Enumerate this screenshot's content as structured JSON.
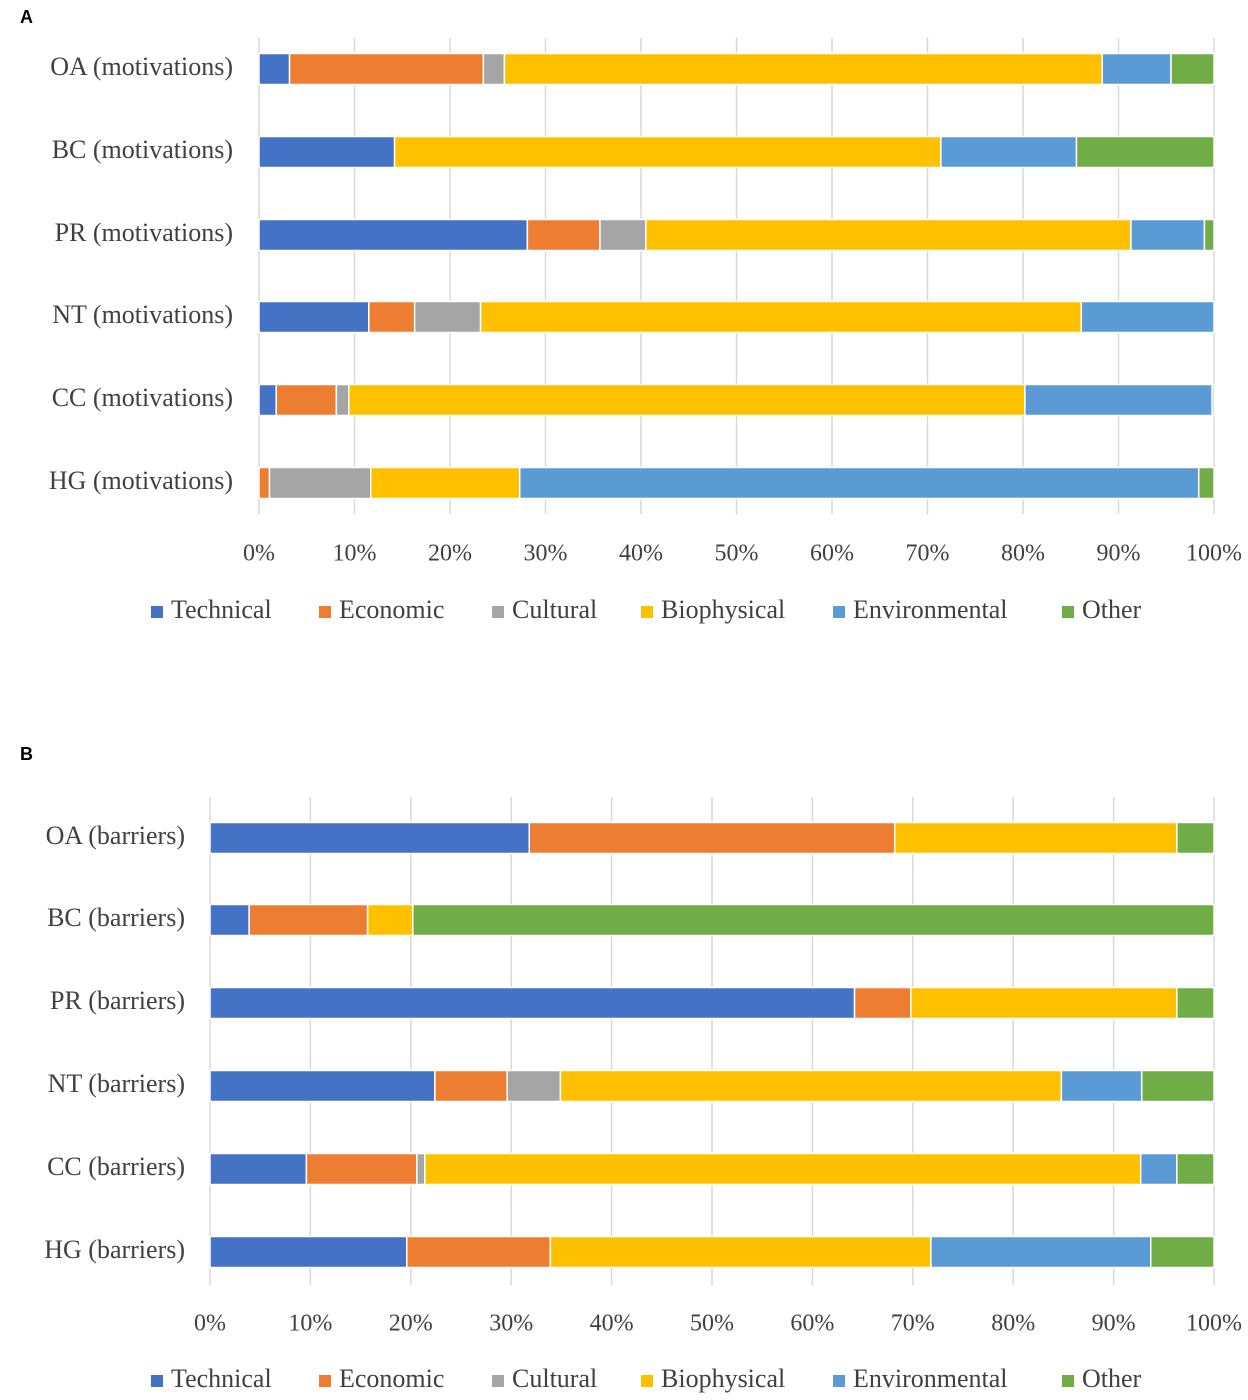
{
  "chart_data": [
    {
      "type": "bar",
      "orientation": "horizontal",
      "stacked": "percent",
      "panel_label": "A",
      "categories": [
        "OA (motivations)",
        "BC (motivations)",
        "PR (motivations)",
        "NT (motivations)",
        "CC (motivations)",
        "HG (motivations)"
      ],
      "series": [
        {
          "name": "Technical",
          "values": [
            3.2,
            14.2,
            28.1,
            11.5,
            1.8,
            0.0
          ]
        },
        {
          "name": "Economic",
          "values": [
            20.3,
            0.0,
            7.6,
            4.8,
            6.3,
            1.1
          ]
        },
        {
          "name": "Cultural",
          "values": [
            2.2,
            0.0,
            4.8,
            6.9,
            1.3,
            10.6
          ]
        },
        {
          "name": "Biophysical",
          "values": [
            62.6,
            57.2,
            50.8,
            62.9,
            70.8,
            15.6
          ]
        },
        {
          "name": "Environmental",
          "values": [
            7.2,
            14.2,
            7.7,
            13.9,
            19.6,
            71.1
          ]
        },
        {
          "name": "Other",
          "values": [
            4.5,
            14.4,
            1.0,
            0.0,
            0.2,
            1.6
          ]
        }
      ],
      "x_ticks": [
        "0%",
        "10%",
        "20%",
        "30%",
        "40%",
        "50%",
        "60%",
        "70%",
        "80%",
        "90%",
        "100%"
      ],
      "xlim": [
        0,
        100
      ],
      "grid": true,
      "legend": "bottom"
    },
    {
      "type": "bar",
      "orientation": "horizontal",
      "stacked": "percent",
      "panel_label": "B",
      "categories": [
        "OA (barriers)",
        "BC (barriers)",
        "PR (barriers)",
        "NT (barriers)",
        "CC (barriers)",
        "HG (barriers)"
      ],
      "series": [
        {
          "name": "Technical",
          "values": [
            31.8,
            3.9,
            64.2,
            22.4,
            9.6,
            19.6
          ]
        },
        {
          "name": "Economic",
          "values": [
            36.4,
            11.8,
            5.6,
            7.2,
            11.0,
            14.3
          ]
        },
        {
          "name": "Cultural",
          "values": [
            0.0,
            0.0,
            0.0,
            5.3,
            0.8,
            0.0
          ]
        },
        {
          "name": "Biophysical",
          "values": [
            28.1,
            4.5,
            26.5,
            49.9,
            71.3,
            37.9
          ]
        },
        {
          "name": "Environmental",
          "values": [
            0.0,
            0.0,
            0.0,
            8.0,
            3.6,
            21.9
          ]
        },
        {
          "name": "Other",
          "values": [
            3.7,
            79.8,
            3.7,
            7.2,
            3.7,
            6.3
          ]
        }
      ],
      "x_ticks": [
        "0%",
        "10%",
        "20%",
        "30%",
        "40%",
        "50%",
        "60%",
        "70%",
        "80%",
        "90%",
        "100%"
      ],
      "xlim": [
        0,
        100
      ],
      "grid": true,
      "legend": "bottom"
    }
  ],
  "colors": {
    "Technical": "#4472C4",
    "Economic": "#ED7D31",
    "Cultural": "#A5A5A5",
    "Biophysical": "#FFC000",
    "Environmental": "#5B9BD5",
    "Other": "#70AD47"
  }
}
